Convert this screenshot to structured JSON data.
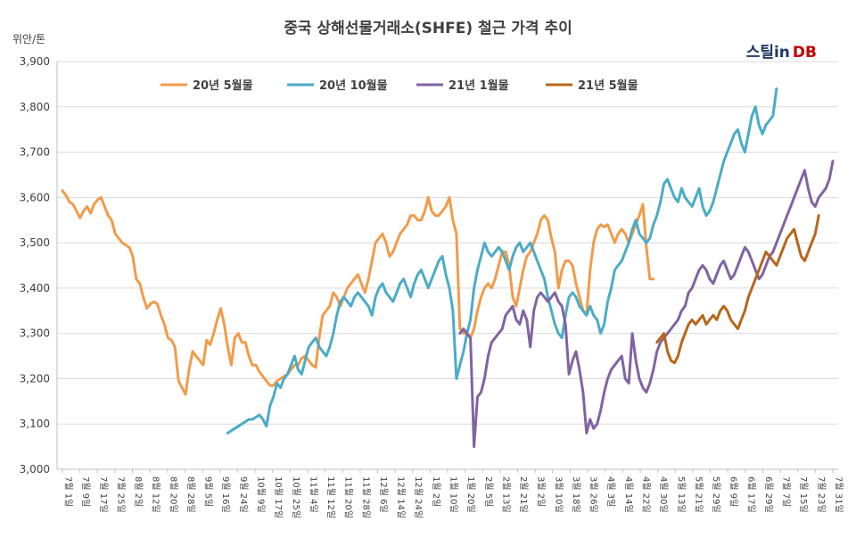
{
  "chart_data": {
    "type": "line",
    "title": "중국 상해선물거래소(SHFE) 철근 가격 추이",
    "ylabel": "위안/톤",
    "ylim": [
      3000,
      3900
    ],
    "yticks": [
      "3,000",
      "3,100",
      "3,200",
      "3,300",
      "3,400",
      "3,500",
      "3,600",
      "3,700",
      "3,800",
      "3,900"
    ],
    "grid": true,
    "legend_position": "top",
    "x_tick_labels": [
      "7월 1일",
      "7월 9일",
      "7월 17일",
      "7월 25일",
      "8월 2일",
      "8월 12일",
      "8월 20일",
      "8월 28일",
      "9월 5일",
      "9월 16일",
      "9월 24일",
      "10월 9일",
      "10월 17일",
      "10월 25일",
      "11월 4일",
      "11월 12일",
      "11월 20일",
      "11월 28일",
      "12월 6일",
      "12월 14일",
      "12월 24일",
      "1월 2일",
      "1월 10일",
      "1월 20일",
      "2월 5일",
      "2월 13일",
      "2월 21일",
      "3월 2일",
      "3월 10일",
      "3월 18일",
      "3월 26일",
      "4월 3일",
      "4월 14일",
      "4월 22일",
      "4월 30일",
      "5월 13일",
      "5월 21일",
      "5월 29일",
      "6월 9일",
      "6월 17일",
      "6월 29일",
      "7월 7일",
      "7월 15일",
      "7월 23일",
      "7월 31일"
    ],
    "series": [
      {
        "name": "20년 5월물",
        "color": "#f29b4a",
        "start": 0,
        "values": [
          3615,
          3605,
          3590,
          3585,
          3570,
          3555,
          3570,
          3580,
          3565,
          3585,
          3595,
          3600,
          3580,
          3560,
          3550,
          3520,
          3510,
          3500,
          3495,
          3490,
          3470,
          3420,
          3410,
          3380,
          3355,
          3365,
          3370,
          3365,
          3340,
          3320,
          3290,
          3285,
          3270,
          3195,
          3180,
          3165,
          3220,
          3260,
          3250,
          3240,
          3230,
          3285,
          3275,
          3300,
          3330,
          3355,
          3320,
          3270,
          3230,
          3290,
          3300,
          3280,
          3280,
          3250,
          3230,
          3230,
          3215,
          3205,
          3195,
          3185,
          3185,
          3195,
          3200,
          3205,
          3210,
          3220,
          3230,
          3230,
          3245,
          3250,
          3240,
          3230,
          3225,
          3290,
          3340,
          3350,
          3360,
          3390,
          3380,
          3360,
          3380,
          3400,
          3410,
          3420,
          3430,
          3410,
          3390,
          3420,
          3460,
          3500,
          3510,
          3520,
          3500,
          3470,
          3480,
          3500,
          3520,
          3530,
          3540,
          3560,
          3560,
          3550,
          3550,
          3570,
          3600,
          3570,
          3560,
          3560,
          3570,
          3580,
          3600,
          3550,
          3520,
          3310,
          3300,
          3300,
          3290,
          3310,
          3350,
          3380,
          3400,
          3410,
          3400,
          3420,
          3450,
          3480,
          3480,
          3450,
          3380,
          3360,
          3400,
          3440,
          3470,
          3480,
          3500,
          3520,
          3550,
          3560,
          3550,
          3510,
          3480,
          3400,
          3440,
          3460,
          3460,
          3450,
          3410,
          3380,
          3350,
          3340,
          3440,
          3500,
          3530,
          3540,
          3535,
          3540,
          3520,
          3500,
          3520,
          3530,
          3520,
          3500,
          3520,
          3540,
          3560,
          3585,
          3490,
          3420,
          3420
        ]
      },
      {
        "name": "20년 10월물",
        "color": "#4bacc6",
        "start": 47,
        "values": [
          3080,
          3085,
          3090,
          3095,
          3100,
          3105,
          3110,
          3110,
          3115,
          3120,
          3110,
          3095,
          3140,
          3160,
          3190,
          3180,
          3200,
          3210,
          3230,
          3250,
          3220,
          3210,
          3240,
          3270,
          3280,
          3290,
          3270,
          3260,
          3250,
          3270,
          3300,
          3340,
          3370,
          3380,
          3370,
          3360,
          3380,
          3390,
          3380,
          3370,
          3360,
          3340,
          3380,
          3400,
          3410,
          3390,
          3380,
          3370,
          3390,
          3410,
          3420,
          3400,
          3380,
          3410,
          3430,
          3440,
          3420,
          3400,
          3420,
          3440,
          3460,
          3470,
          3430,
          3400,
          3350,
          3200,
          3230,
          3260,
          3300,
          3330,
          3400,
          3440,
          3470,
          3500,
          3480,
          3470,
          3480,
          3490,
          3480,
          3460,
          3440,
          3470,
          3490,
          3500,
          3480,
          3490,
          3500,
          3480,
          3460,
          3440,
          3420,
          3380,
          3350,
          3320,
          3300,
          3290,
          3340,
          3380,
          3390,
          3380,
          3360,
          3350,
          3340,
          3360,
          3340,
          3330,
          3300,
          3320,
          3370,
          3400,
          3440,
          3450,
          3460,
          3480,
          3500,
          3530,
          3550,
          3520,
          3510,
          3500,
          3510,
          3540,
          3560,
          3590,
          3630,
          3640,
          3620,
          3600,
          3590,
          3620,
          3600,
          3590,
          3580,
          3600,
          3620,
          3580,
          3560,
          3570,
          3590,
          3620,
          3650,
          3680,
          3700,
          3720,
          3740,
          3750,
          3720,
          3700,
          3740,
          3780,
          3800,
          3760,
          3740,
          3760,
          3770,
          3780,
          3840
        ]
      },
      {
        "name": "21년 1월물",
        "color": "#8064a2",
        "start": 113,
        "values": [
          3300,
          3310,
          3300,
          3290,
          3050,
          3160,
          3170,
          3200,
          3250,
          3280,
          3290,
          3300,
          3310,
          3340,
          3350,
          3360,
          3330,
          3320,
          3350,
          3330,
          3270,
          3350,
          3380,
          3390,
          3380,
          3370,
          3380,
          3390,
          3370,
          3360,
          3320,
          3210,
          3240,
          3260,
          3220,
          3170,
          3080,
          3110,
          3090,
          3100,
          3130,
          3170,
          3200,
          3220,
          3230,
          3240,
          3250,
          3200,
          3190,
          3300,
          3240,
          3200,
          3180,
          3170,
          3190,
          3220,
          3260,
          3280,
          3290,
          3300,
          3310,
          3320,
          3330,
          3350,
          3360,
          3390,
          3400,
          3420,
          3440,
          3450,
          3440,
          3420,
          3410,
          3430,
          3450,
          3460,
          3440,
          3420,
          3430,
          3450,
          3470,
          3490,
          3480,
          3460,
          3440,
          3420,
          3430,
          3450,
          3470,
          3480,
          3500,
          3520,
          3540,
          3560,
          3580,
          3600,
          3620,
          3640,
          3660,
          3620,
          3590,
          3580,
          3600,
          3610,
          3620,
          3640,
          3680
        ]
      },
      {
        "name": "21년 5월물",
        "color": "#b8661a",
        "start": 169,
        "values": [
          3280,
          3290,
          3300,
          3260,
          3240,
          3235,
          3250,
          3280,
          3300,
          3320,
          3330,
          3320,
          3330,
          3340,
          3320,
          3330,
          3340,
          3330,
          3350,
          3360,
          3350,
          3330,
          3320,
          3310,
          3330,
          3350,
          3380,
          3400,
          3420,
          3440,
          3460,
          3480,
          3470,
          3460,
          3450,
          3470,
          3490,
          3510,
          3520,
          3530,
          3500,
          3470,
          3460,
          3480,
          3500,
          3520,
          3560
        ]
      }
    ]
  },
  "logo": {
    "part1": "스틸in",
    "part2": "DB"
  }
}
